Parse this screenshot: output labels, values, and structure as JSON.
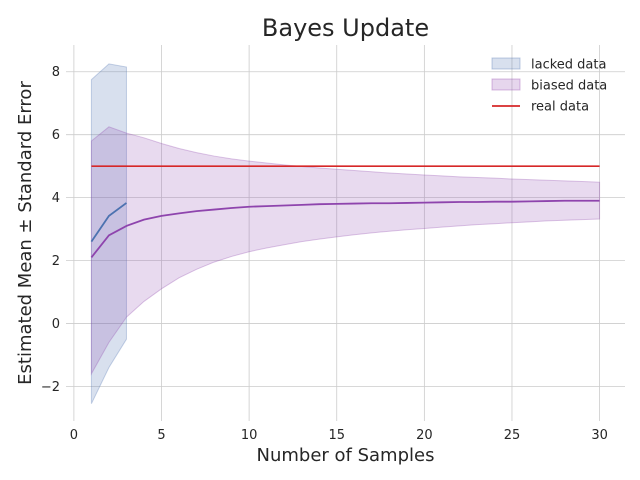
{
  "chart_data": {
    "type": "line",
    "title": "Bayes Update",
    "xlabel": "Number of Samples",
    "ylabel": "Estimated Mean ± Standard Error",
    "xlim": [
      -0.45,
      31.45
    ],
    "ylim": [
      -3.1,
      8.85
    ],
    "xticks": [
      0,
      5,
      10,
      15,
      20,
      25,
      30
    ],
    "yticks": [
      -2,
      0,
      2,
      4,
      6,
      8
    ],
    "grid": true,
    "legend_position": "top-right",
    "series": [
      {
        "name": "lacked data",
        "kind": "band",
        "color": "#4c72b0",
        "x": [
          1,
          2,
          3
        ],
        "mean": [
          2.6,
          3.42,
          3.83
        ],
        "lower": [
          -2.55,
          -1.4,
          -0.5
        ],
        "upper": [
          7.75,
          8.25,
          8.15
        ]
      },
      {
        "name": "biased data",
        "kind": "band",
        "color": "#8e44ad",
        "x": [
          1,
          2,
          3,
          4,
          5,
          6,
          7,
          8,
          9,
          10,
          11,
          12,
          13,
          14,
          15,
          16,
          17,
          18,
          19,
          20,
          21,
          22,
          23,
          24,
          25,
          26,
          27,
          28,
          29,
          30
        ],
        "mean": [
          2.1,
          2.8,
          3.1,
          3.3,
          3.42,
          3.5,
          3.57,
          3.62,
          3.67,
          3.71,
          3.73,
          3.75,
          3.77,
          3.79,
          3.8,
          3.81,
          3.82,
          3.82,
          3.83,
          3.84,
          3.85,
          3.86,
          3.86,
          3.87,
          3.87,
          3.88,
          3.89,
          3.9,
          3.9,
          3.9
        ],
        "lower": [
          -1.6,
          -0.6,
          0.2,
          0.7,
          1.1,
          1.45,
          1.72,
          1.95,
          2.13,
          2.28,
          2.4,
          2.5,
          2.6,
          2.68,
          2.75,
          2.82,
          2.88,
          2.93,
          2.98,
          3.02,
          3.06,
          3.1,
          3.14,
          3.17,
          3.2,
          3.23,
          3.26,
          3.28,
          3.3,
          3.32
        ],
        "upper": [
          5.8,
          6.25,
          6.05,
          5.9,
          5.72,
          5.56,
          5.43,
          5.32,
          5.23,
          5.16,
          5.1,
          5.04,
          4.99,
          4.94,
          4.9,
          4.86,
          4.82,
          4.78,
          4.75,
          4.72,
          4.69,
          4.66,
          4.64,
          4.62,
          4.59,
          4.57,
          4.55,
          4.53,
          4.51,
          4.49
        ]
      },
      {
        "name": "real data",
        "kind": "line",
        "color": "#d62728",
        "x": [
          1,
          30
        ],
        "y": [
          5,
          5
        ]
      }
    ]
  }
}
